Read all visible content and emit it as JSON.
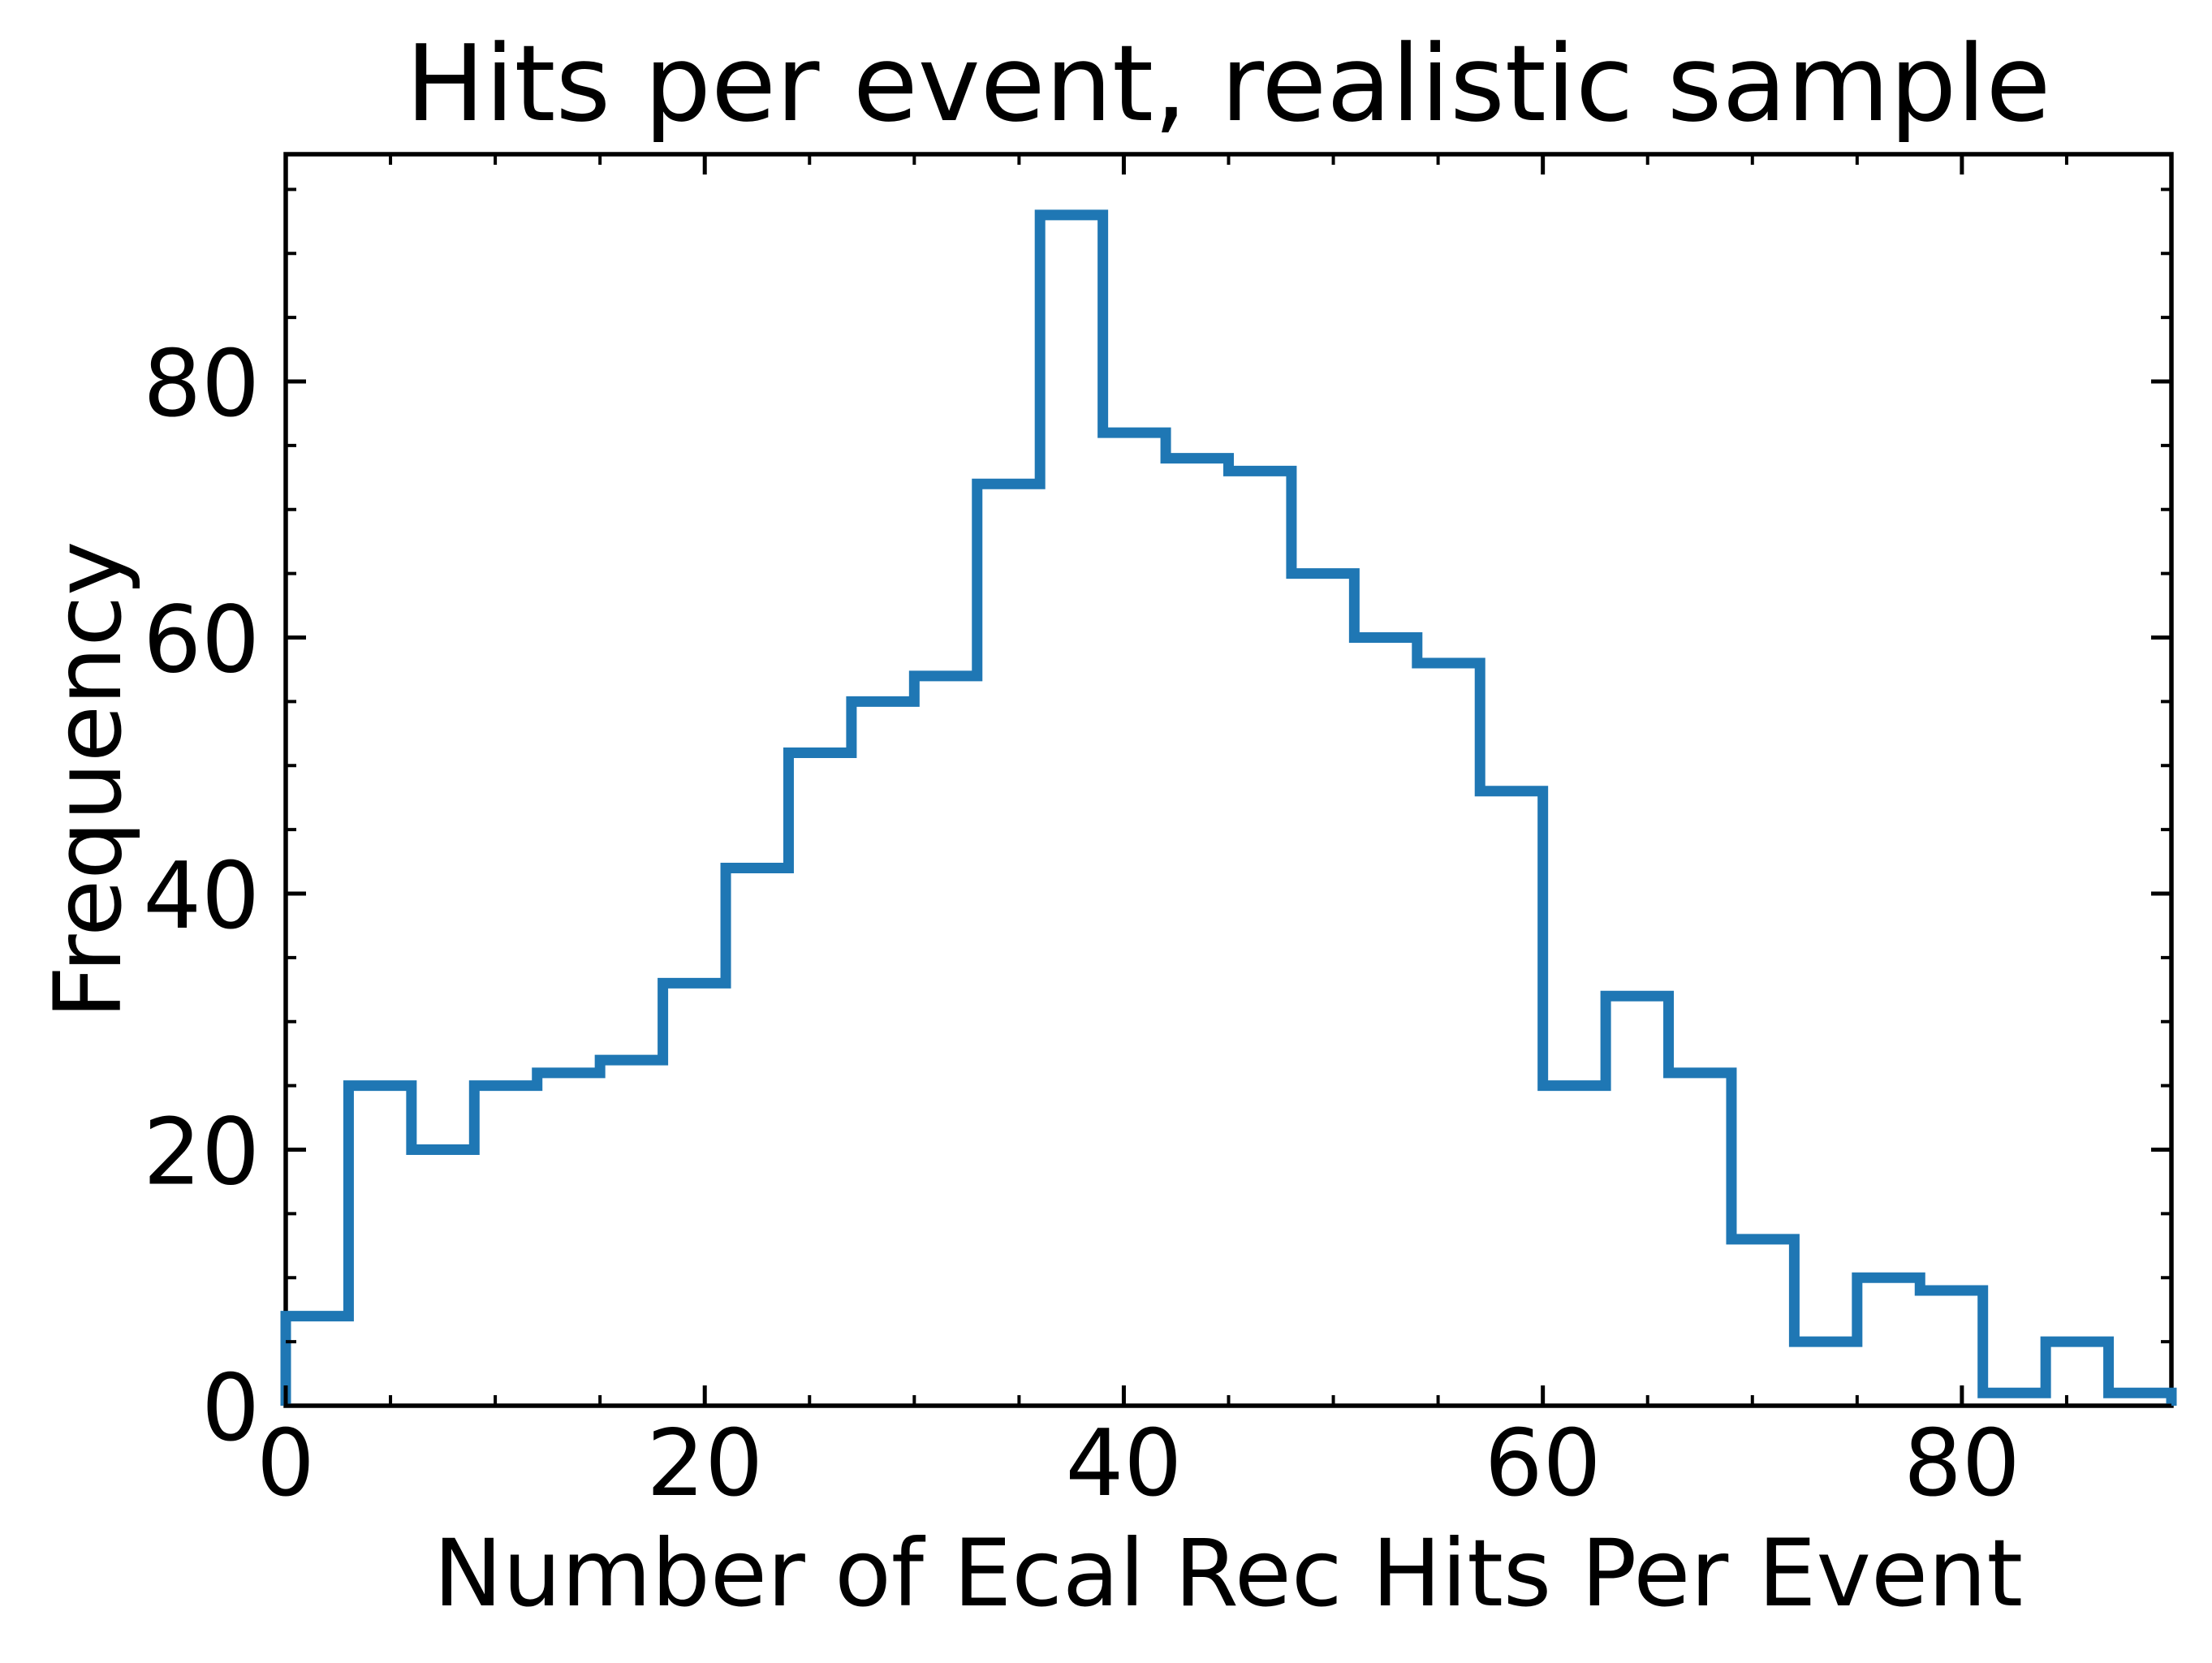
{
  "figure": {
    "title": "Hits per event, realistic sample",
    "xlabel": "Number of Ecal Rec Hits Per Event",
    "ylabel": "Frequency",
    "background_color": "#ffffff",
    "line_color": "#1f77b4",
    "axis_color": "#000000"
  },
  "chart_data": {
    "type": "bar",
    "subtype": "step-histogram",
    "title": "Hits per event, realistic sample",
    "xlabel": "Number of Ecal Rec Hits Per Event",
    "ylabel": "Frequency",
    "bin_width": 3,
    "bin_edges": [
      0,
      3,
      6,
      9,
      12,
      15,
      18,
      21,
      24,
      27,
      30,
      33,
      36,
      39,
      42,
      45,
      48,
      51,
      54,
      57,
      60,
      63,
      66,
      69,
      72,
      75,
      78,
      81,
      84,
      87,
      90
    ],
    "counts": [
      7,
      25,
      20,
      25,
      26,
      27,
      33,
      42,
      51,
      55,
      57,
      72,
      93,
      76,
      74,
      73,
      65,
      60,
      58,
      48,
      25,
      32,
      26,
      13,
      5,
      10,
      9,
      1,
      5,
      1
    ],
    "xlim": [
      0,
      90
    ],
    "ylim": [
      0,
      97.75
    ],
    "xticks_major": [
      0,
      20,
      40,
      60,
      80
    ],
    "yticks_major": [
      0,
      20,
      40,
      60,
      80
    ],
    "xtick_labels": [
      "0",
      "20",
      "40",
      "60",
      "80"
    ],
    "ytick_labels": [
      "0",
      "20",
      "40",
      "60",
      "80"
    ],
    "minor_tick_step": 5,
    "tick_direction": "in",
    "ticks_on_all_sides": true,
    "grid": false,
    "legend": null,
    "line_color": "#1f77b4"
  }
}
